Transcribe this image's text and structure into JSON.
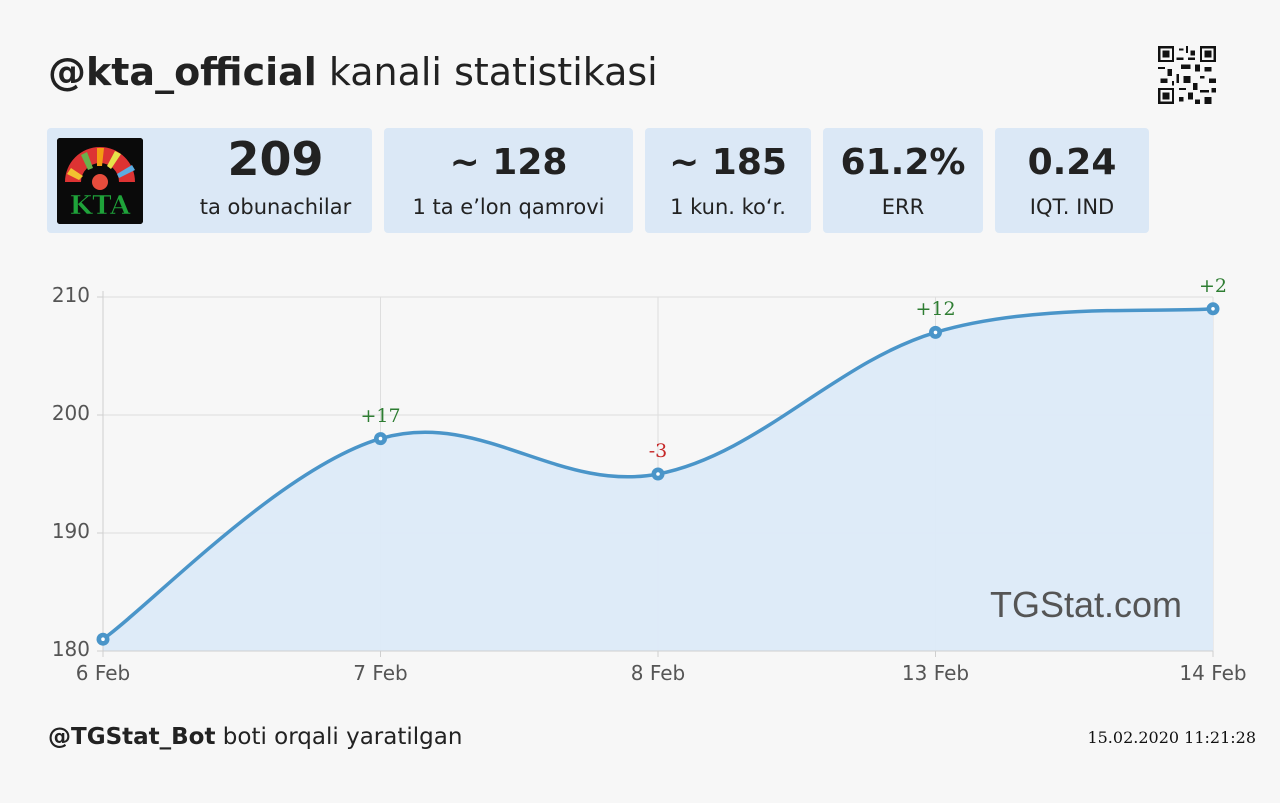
{
  "header": {
    "handle": "@kta_official",
    "title_rest": " kanali statistikasi"
  },
  "avatar_text": "KTA",
  "stats": [
    {
      "value": "209",
      "label": "ta obunachilar"
    },
    {
      "value": "~ 128",
      "label": "1 ta e’lon qamrovi"
    },
    {
      "value": "~ 185",
      "label": "1 kun. ko‘r."
    },
    {
      "value": "61.2%",
      "label": "ERR"
    },
    {
      "value": "0.24",
      "label": "IQT. IND"
    }
  ],
  "chart_data": {
    "type": "area",
    "x": [
      "6 Feb",
      "7 Feb",
      "8 Feb",
      "13 Feb",
      "14 Feb"
    ],
    "values": [
      181,
      198,
      195,
      207,
      209
    ],
    "deltas": [
      "",
      "+17",
      "-3",
      "+12",
      "+2"
    ],
    "ylim": [
      180,
      210
    ],
    "yticks": [
      180,
      190,
      200,
      210
    ],
    "grid": true,
    "colors": {
      "line": "#4a95c9",
      "fill": "#dceaf8",
      "positive": "#2e7d32",
      "negative": "#c62828"
    }
  },
  "watermark": "TGStat.com",
  "footer": {
    "bot": "@TGStat_Bot",
    "rest": " boti orqali yaratilgan",
    "timestamp": "15.02.2020 11:21:28"
  }
}
